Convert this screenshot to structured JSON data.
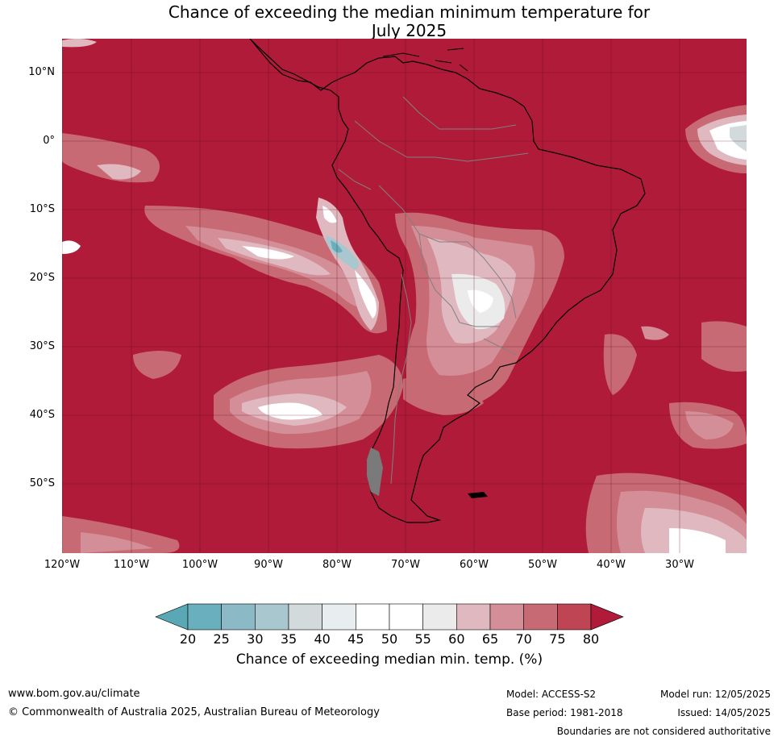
{
  "title_line1": "Chance of exceeding the median minimum temperature for",
  "title_line2": "July 2025",
  "lat_labels": [
    "10°N",
    "0°",
    "10°S",
    "20°S",
    "30°S",
    "40°S",
    "50°S"
  ],
  "lon_labels": [
    "120°W",
    "110°W",
    "100°W",
    "90°W",
    "80°W",
    "70°W",
    "60°W",
    "50°W",
    "40°W",
    "30°W"
  ],
  "colorbar": {
    "ticks": [
      "20",
      "25",
      "30",
      "35",
      "40",
      "45",
      "50",
      "55",
      "60",
      "65",
      "70",
      "75",
      "80"
    ],
    "colors": [
      "#5aa8b6",
      "#6aafbd",
      "#8bb9c6",
      "#a9c7cf",
      "#d2dadb",
      "#e8eef0",
      "#ffffff",
      "#ffffff",
      "#ebebeb",
      "#e0b9c0",
      "#d48e97",
      "#c86a74",
      "#bf4454",
      "#b01b39"
    ],
    "label": "Chance of exceeding median min. temp. (%)"
  },
  "colors": {
    "ocean_main": "#b01b39",
    "land_outline": "#000000",
    "border": "#808080"
  },
  "footer": {
    "url": "www.bom.gov.au/climate",
    "copyright": "© Commonwealth of Australia 2025, Australian Bureau of Meteorology",
    "model": "Model: ACCESS-S2",
    "base_period": "Base period: 1981-2018",
    "model_run": "Model run: 12/05/2025",
    "issued": "Issued: 14/05/2025",
    "disclaimer": "Boundaries are not considered authoritative"
  }
}
